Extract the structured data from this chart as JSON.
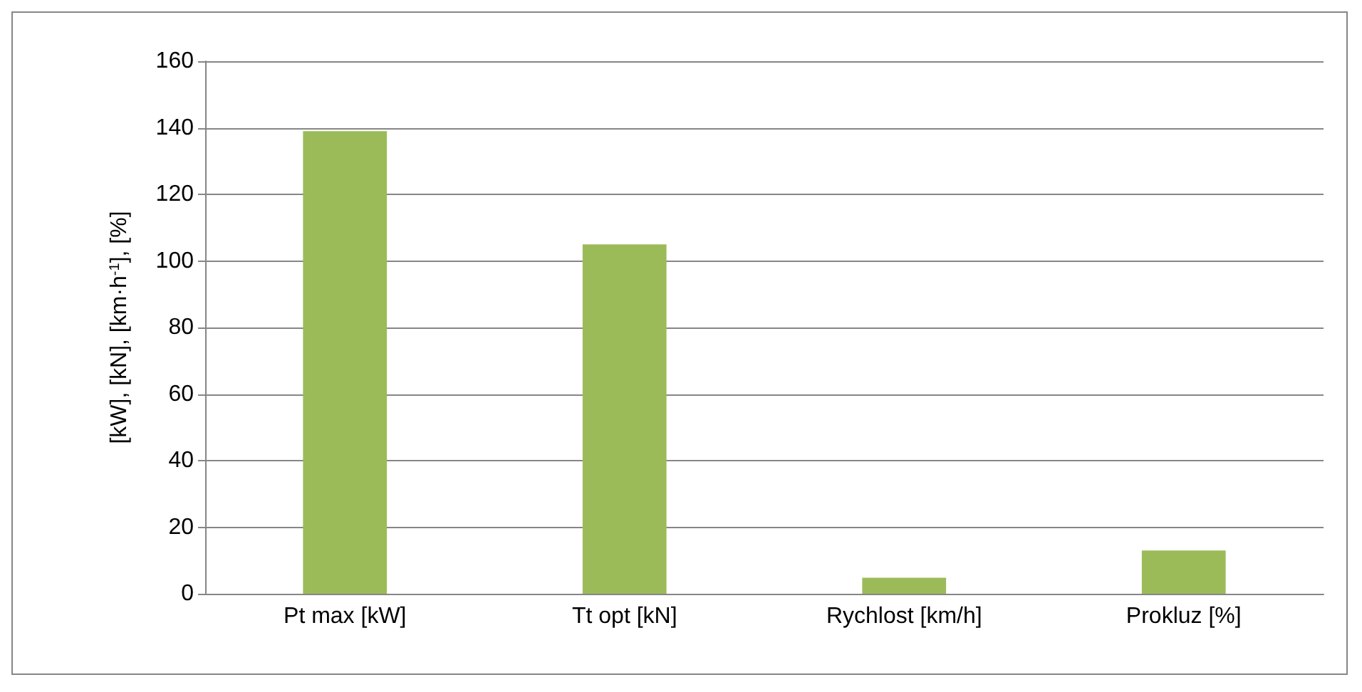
{
  "chart_data": {
    "type": "bar",
    "ylabel": "[kW], [kN], [km·h$^{-1}$], [%]",
    "categories": [
      "Pt max [kW]",
      "Tt opt [kN]",
      "Rychlost [km/h]",
      "Prokluz [%]"
    ],
    "values": [
      139,
      105,
      4.8,
      13
    ],
    "color": "#9bbb59",
    "ylim": [
      0,
      160
    ],
    "yticks": [
      0,
      20,
      40,
      60,
      80,
      100,
      120,
      140,
      160
    ],
    "grid": "y"
  }
}
